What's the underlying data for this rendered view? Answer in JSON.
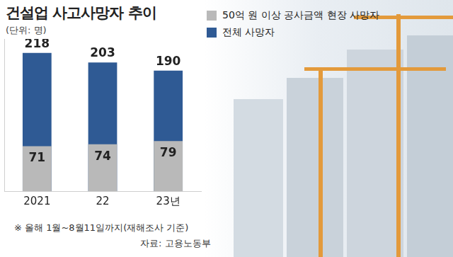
{
  "chart_data": {
    "type": "bar",
    "title": "건설업 사고사망자 추이",
    "subtitle": "(단위: 명)",
    "categories": [
      "2021",
      "22",
      "23년"
    ],
    "series": [
      {
        "name": "50억 원 이상 공사금액 현장 사망자",
        "color": "#b9b9b9",
        "values": [
          71,
          74,
          79
        ]
      },
      {
        "name": "전체 사망자",
        "color": "#2f5a94",
        "values": [
          218,
          203,
          190
        ]
      }
    ],
    "ylim": [
      0,
      240
    ],
    "grid": false,
    "stacked": false,
    "data_labels": true,
    "tick_labels": "x",
    "legend": "top right",
    "annotations": [
      "※ 올해 1월~8월11일까지(재해조사 기준)",
      "자료: 고용노동부"
    ]
  }
}
